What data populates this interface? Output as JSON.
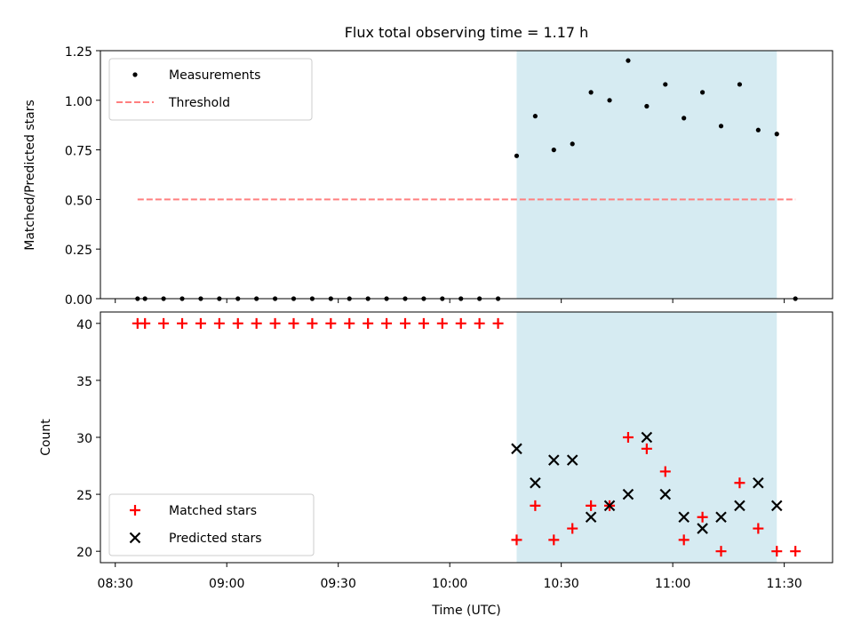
{
  "chart_data": [
    {
      "type": "scatter",
      "title": "Flux total observing time = 1.17 h",
      "xlabel": "",
      "ylabel": "Matched/Predicted stars",
      "ylim": [
        0,
        1.25
      ],
      "yticks": [
        0,
        0.25,
        0.5,
        0.75,
        1.0,
        1.25
      ],
      "ytick_labels": [
        "0.00",
        "0.25",
        "0.50",
        "0.75",
        "1.00",
        "1.25"
      ],
      "highlight_span": {
        "start": "10:18",
        "end": "11:28",
        "color": "#add8e6"
      },
      "legend_position": "upper-left",
      "series": [
        {
          "name": "Measurements",
          "marker": "dot",
          "color": "#000000",
          "points": [
            [
              "08:36",
              0.0
            ],
            [
              "08:38",
              0.0
            ],
            [
              "08:43",
              0.0
            ],
            [
              "08:48",
              0.0
            ],
            [
              "08:53",
              0.0
            ],
            [
              "08:58",
              0.0
            ],
            [
              "09:03",
              0.0
            ],
            [
              "09:08",
              0.0
            ],
            [
              "09:13",
              0.0
            ],
            [
              "09:18",
              0.0
            ],
            [
              "09:23",
              0.0
            ],
            [
              "09:28",
              0.0
            ],
            [
              "09:33",
              0.0
            ],
            [
              "09:38",
              0.0
            ],
            [
              "09:43",
              0.0
            ],
            [
              "09:48",
              0.0
            ],
            [
              "09:53",
              0.0
            ],
            [
              "09:58",
              0.0
            ],
            [
              "10:03",
              0.0
            ],
            [
              "10:08",
              0.0
            ],
            [
              "10:13",
              0.0
            ],
            [
              "10:18",
              0.72
            ],
            [
              "10:23",
              0.92
            ],
            [
              "10:28",
              0.75
            ],
            [
              "10:33",
              0.78
            ],
            [
              "10:38",
              1.04
            ],
            [
              "10:43",
              1.0
            ],
            [
              "10:48",
              1.2
            ],
            [
              "10:53",
              0.97
            ],
            [
              "10:58",
              1.08
            ],
            [
              "11:03",
              0.91
            ],
            [
              "11:08",
              1.04
            ],
            [
              "11:13",
              0.87
            ],
            [
              "11:18",
              1.08
            ],
            [
              "11:23",
              0.85
            ],
            [
              "11:28",
              0.83
            ],
            [
              "11:33",
              0.0
            ]
          ]
        },
        {
          "name": "Threshold",
          "style": "dashed-line",
          "color": "#ff7f7f",
          "points": [
            [
              "08:36",
              0.5
            ],
            [
              "11:33",
              0.5
            ]
          ]
        }
      ]
    },
    {
      "type": "scatter",
      "title": "",
      "xlabel": "Time (UTC)",
      "ylabel": "Count",
      "ylim": [
        19,
        41
      ],
      "yticks": [
        20,
        25,
        30,
        35,
        40
      ],
      "ytick_labels": [
        "20",
        "25",
        "30",
        "35",
        "40"
      ],
      "xticks": [
        "08:30",
        "09:00",
        "09:30",
        "10:00",
        "10:30",
        "11:00",
        "11:30"
      ],
      "xlim": [
        "08:26",
        "11:43"
      ],
      "highlight_span": {
        "start": "10:18",
        "end": "11:28",
        "color": "#add8e6"
      },
      "legend_position": "lower-left",
      "series": [
        {
          "name": "Matched stars",
          "marker": "plus",
          "color": "#ff0000",
          "points": [
            [
              "08:36",
              40
            ],
            [
              "08:38",
              40
            ],
            [
              "08:43",
              40
            ],
            [
              "08:48",
              40
            ],
            [
              "08:53",
              40
            ],
            [
              "08:58",
              40
            ],
            [
              "09:03",
              40
            ],
            [
              "09:08",
              40
            ],
            [
              "09:13",
              40
            ],
            [
              "09:18",
              40
            ],
            [
              "09:23",
              40
            ],
            [
              "09:28",
              40
            ],
            [
              "09:33",
              40
            ],
            [
              "09:38",
              40
            ],
            [
              "09:43",
              40
            ],
            [
              "09:48",
              40
            ],
            [
              "09:53",
              40
            ],
            [
              "09:58",
              40
            ],
            [
              "10:03",
              40
            ],
            [
              "10:08",
              40
            ],
            [
              "10:13",
              40
            ],
            [
              "10:18",
              21
            ],
            [
              "10:23",
              24
            ],
            [
              "10:28",
              21
            ],
            [
              "10:33",
              22
            ],
            [
              "10:38",
              24
            ],
            [
              "10:43",
              24
            ],
            [
              "10:48",
              30
            ],
            [
              "10:53",
              29
            ],
            [
              "10:58",
              27
            ],
            [
              "11:03",
              21
            ],
            [
              "11:08",
              23
            ],
            [
              "11:13",
              20
            ],
            [
              "11:18",
              26
            ],
            [
              "11:23",
              22
            ],
            [
              "11:28",
              20
            ],
            [
              "11:33",
              20
            ]
          ]
        },
        {
          "name": "Predicted stars",
          "marker": "x",
          "color": "#000000",
          "points": [
            [
              "10:18",
              29
            ],
            [
              "10:23",
              26
            ],
            [
              "10:28",
              28
            ],
            [
              "10:33",
              28
            ],
            [
              "10:38",
              23
            ],
            [
              "10:43",
              24
            ],
            [
              "10:48",
              25
            ],
            [
              "10:53",
              30
            ],
            [
              "10:58",
              25
            ],
            [
              "11:03",
              23
            ],
            [
              "11:08",
              22
            ],
            [
              "11:13",
              23
            ],
            [
              "11:18",
              24
            ],
            [
              "11:23",
              26
            ],
            [
              "11:28",
              24
            ]
          ]
        }
      ]
    }
  ]
}
